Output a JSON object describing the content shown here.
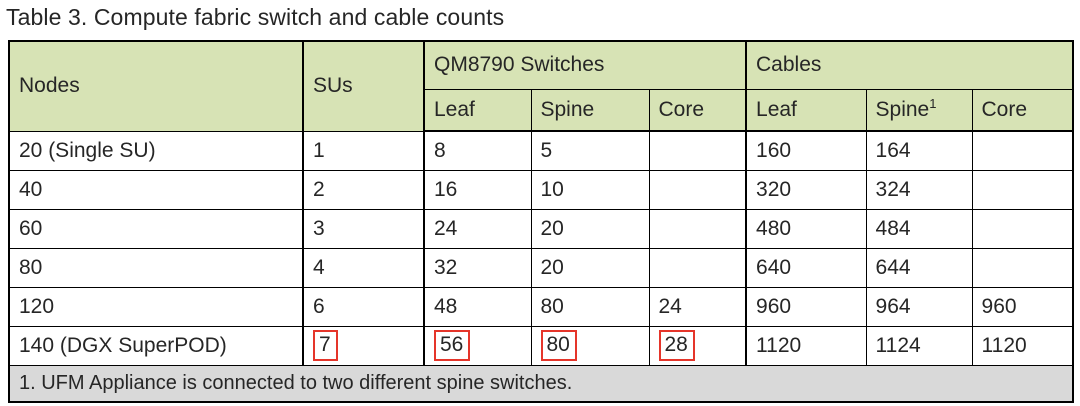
{
  "title": "Table 3. Compute fabric switch and cable counts",
  "table": {
    "header": {
      "nodes": "Nodes",
      "sus": "SUs",
      "switches_group": "QM8790 Switches",
      "cables_group": "Cables",
      "switch_cols": [
        "Leaf",
        "Spine",
        "Core"
      ],
      "cable_cols": [
        "Leaf",
        "Spine",
        "Core"
      ],
      "cable_spine_superscript": "1"
    },
    "rows": [
      {
        "nodes": "20 (Single SU)",
        "sus": "1",
        "sw_leaf": "8",
        "sw_spine": "5",
        "sw_core": "",
        "cb_leaf": "160",
        "cb_spine": "164",
        "cb_core": "",
        "highlighted": []
      },
      {
        "nodes": "40",
        "sus": "2",
        "sw_leaf": "16",
        "sw_spine": "10",
        "sw_core": "",
        "cb_leaf": "320",
        "cb_spine": "324",
        "cb_core": "",
        "highlighted": []
      },
      {
        "nodes": "60",
        "sus": "3",
        "sw_leaf": "24",
        "sw_spine": "20",
        "sw_core": "",
        "cb_leaf": "480",
        "cb_spine": "484",
        "cb_core": "",
        "highlighted": []
      },
      {
        "nodes": "80",
        "sus": "4",
        "sw_leaf": "32",
        "sw_spine": "20",
        "sw_core": "",
        "cb_leaf": "640",
        "cb_spine": "644",
        "cb_core": "",
        "highlighted": []
      },
      {
        "nodes": "120",
        "sus": "6",
        "sw_leaf": "48",
        "sw_spine": "80",
        "sw_core": "24",
        "cb_leaf": "960",
        "cb_spine": "964",
        "cb_core": "960",
        "highlighted": []
      },
      {
        "nodes": "140 (DGX SuperPOD)",
        "sus": "7",
        "sw_leaf": "56",
        "sw_spine": "80",
        "sw_core": "28",
        "cb_leaf": "1120",
        "cb_spine": "1124",
        "cb_core": "1120",
        "highlighted": [
          "sus",
          "sw_leaf",
          "sw_spine",
          "sw_core"
        ]
      }
    ],
    "footnote": "1. UFM Appliance is connected to two different spine switches."
  },
  "colors": {
    "header_bg": "#d7e3b5",
    "footnote_bg": "#d9d9d9",
    "border": "#000000",
    "highlight_border": "#e5352a",
    "text": "#262626"
  }
}
